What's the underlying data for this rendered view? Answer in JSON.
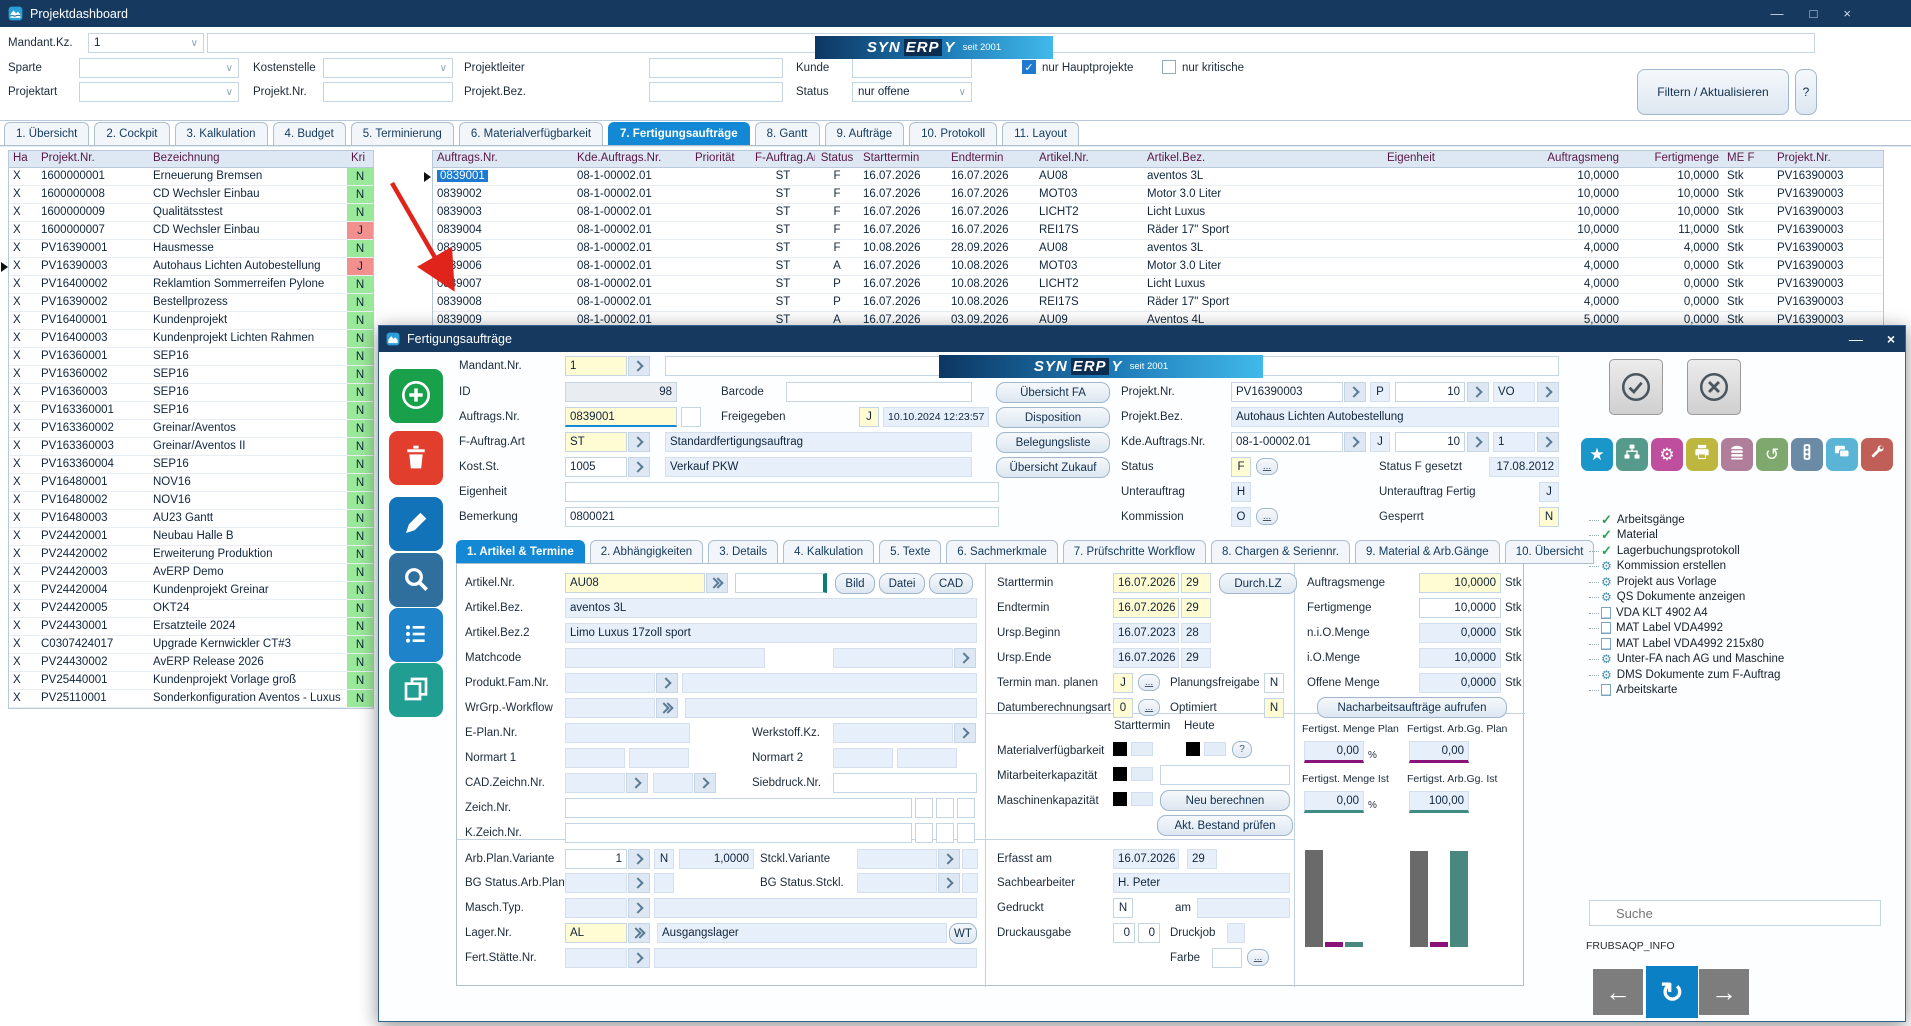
{
  "window": {
    "title": "Projektdashboard",
    "minimize": "—",
    "maximize": "□",
    "close": "×"
  },
  "brand": {
    "pre": "SYN",
    "mid": "ERP",
    "post": "Y",
    "tagline": "seit 2001"
  },
  "filters": {
    "mandant_label": "Mandant.Kz.",
    "mandant_value": "1",
    "sparte_label": "Sparte",
    "kostenstelle_label": "Kostenstelle",
    "projektleiter_label": "Projektleiter",
    "kunde_label": "Kunde",
    "projektart_label": "Projektart",
    "projektnr_label": "Projekt.Nr.",
    "projektbez_label": "Projekt.Bez.",
    "status_label": "Status",
    "status_value": "nur offene",
    "check_haupt_label": "nur Hauptprojekte",
    "check_kritisch_label": "nur kritische",
    "check_mark": "✓",
    "filter_button": "Filtern / Aktualisieren",
    "help_button": "?"
  },
  "main_tabs": [
    {
      "label": "1. Übersicht"
    },
    {
      "label": "2. Cockpit"
    },
    {
      "label": "3. Kalkulation"
    },
    {
      "label": "4. Budget"
    },
    {
      "label": "5. Terminierung"
    },
    {
      "label": "6. Materialverfügbarkeit"
    },
    {
      "label": "7. Fertigungsaufträge",
      "active": true
    },
    {
      "label": "8. Gantt"
    },
    {
      "label": "9. Aufträge"
    },
    {
      "label": "10. Protokoll"
    },
    {
      "label": "11. Layout"
    }
  ],
  "project_table": {
    "headers": [
      "Ha",
      "Projekt.Nr.",
      "Bezeichnung",
      "Kri"
    ],
    "marker_row": 5,
    "rows": [
      {
        "ha": "X",
        "nr": "1600000001",
        "bez": "Erneuerung Bremsen",
        "kr": "N",
        "red": false
      },
      {
        "ha": "X",
        "nr": "1600000008",
        "bez": "CD Wechsler Einbau",
        "kr": "N",
        "red": false
      },
      {
        "ha": "X",
        "nr": "1600000009",
        "bez": "Qualitätsstest",
        "kr": "N",
        "red": false
      },
      {
        "ha": "X",
        "nr": "1600000007",
        "bez": "CD Wechsler Einbau",
        "kr": "J",
        "red": true
      },
      {
        "ha": "X",
        "nr": "PV16390001",
        "bez": "Hausmesse",
        "kr": "N",
        "red": false
      },
      {
        "ha": "X",
        "nr": "PV16390003",
        "bez": "Autohaus Lichten Autobestellung",
        "kr": "J",
        "red": true
      },
      {
        "ha": "X",
        "nr": "PV16400002",
        "bez": "Reklamtion Sommerreifen Pylone",
        "kr": "N",
        "red": false
      },
      {
        "ha": "X",
        "nr": "PV16390002",
        "bez": "Bestellprozess",
        "kr": "N",
        "red": false
      },
      {
        "ha": "X",
        "nr": "PV16400001",
        "bez": "Kundenprojekt",
        "kr": "N",
        "red": false
      },
      {
        "ha": "X",
        "nr": "PV16400003",
        "bez": "Kundenprojekt Lichten Rahmen",
        "kr": "N",
        "red": false
      },
      {
        "ha": "X",
        "nr": "PV16360001",
        "bez": "SEP16",
        "kr": "N",
        "red": false
      },
      {
        "ha": "X",
        "nr": "PV16360002",
        "bez": "SEP16",
        "kr": "N",
        "red": false
      },
      {
        "ha": "X",
        "nr": "PV16360003",
        "bez": "SEP16",
        "kr": "N",
        "red": false
      },
      {
        "ha": "X",
        "nr": "PV163360001",
        "bez": "SEP16",
        "kr": "N",
        "red": false
      },
      {
        "ha": "X",
        "nr": "PV163360002",
        "bez": "Greinar/Aventos",
        "kr": "N",
        "red": false
      },
      {
        "ha": "X",
        "nr": "PV163360003",
        "bez": "Greinar/Aventos II",
        "kr": "N",
        "red": false
      },
      {
        "ha": "X",
        "nr": "PV163360004",
        "bez": "SEP16",
        "kr": "N",
        "red": false
      },
      {
        "ha": "X",
        "nr": "PV16480001",
        "bez": "NOV16",
        "kr": "N",
        "red": false
      },
      {
        "ha": "X",
        "nr": "PV16480002",
        "bez": "NOV16",
        "kr": "N",
        "red": false
      },
      {
        "ha": "X",
        "nr": "PV16480003",
        "bez": "AU23 Gantt",
        "kr": "N",
        "red": false
      },
      {
        "ha": "X",
        "nr": "PV24420001",
        "bez": "Neubau Halle B",
        "kr": "N",
        "red": false
      },
      {
        "ha": "X",
        "nr": "PV24420002",
        "bez": "Erweiterung Produktion",
        "kr": "N",
        "red": false
      },
      {
        "ha": "X",
        "nr": "PV24420003",
        "bez": "AvERP Demo",
        "kr": "N",
        "red": false
      },
      {
        "ha": "X",
        "nr": "PV24420004",
        "bez": "Kundenprojekt Greinar",
        "kr": "N",
        "red": false
      },
      {
        "ha": "X",
        "nr": "PV24420005",
        "bez": "OKT24",
        "kr": "N",
        "red": false
      },
      {
        "ha": "X",
        "nr": "PV24430001",
        "bez": "Ersatzteile 2024",
        "kr": "N",
        "red": false
      },
      {
        "ha": "X",
        "nr": "C0307424017",
        "bez": "Upgrade Kernwickler CT#3",
        "kr": "N",
        "red": false
      },
      {
        "ha": "X",
        "nr": "PV24430002",
        "bez": "AvERP Release 2026",
        "kr": "N",
        "red": false
      },
      {
        "ha": "X",
        "nr": "PV25440001",
        "bez": "Kundenprojekt Vorlage groß",
        "kr": "N",
        "red": false
      },
      {
        "ha": "X",
        "nr": "PV25110001",
        "bez": "Sonderkonfiguration Aventos - Luxus",
        "kr": "N",
        "red": false
      }
    ]
  },
  "orders_table": {
    "headers": [
      "Auftrags.Nr.",
      "Kde.Auftrags.Nr.",
      "Priorität",
      "F-Auftrag.Art",
      "Status",
      "Starttermin",
      "Endtermin",
      "Artikel.Nr.",
      "Artikel.Bez.",
      "Eigenheit",
      "Auftragsmeng",
      "Fertigmenge",
      "ME F",
      "Projekt.Nr."
    ],
    "selected_row": 0,
    "rows": [
      [
        "0839001",
        "08-1-00002.01",
        "",
        "ST",
        "F",
        "16.07.2026",
        "16.07.2026",
        "AU08",
        "aventos 3L",
        "",
        "10,0000",
        "10,0000",
        "Stk",
        "PV16390003"
      ],
      [
        "0839002",
        "08-1-00002.01",
        "",
        "ST",
        "F",
        "16.07.2026",
        "16.07.2026",
        "MOT03",
        "Motor 3.0 Liter",
        "",
        "10,0000",
        "10,0000",
        "Stk",
        "PV16390003"
      ],
      [
        "0839003",
        "08-1-00002.01",
        "",
        "ST",
        "F",
        "16.07.2026",
        "16.07.2026",
        "LICHT2",
        "Licht Luxus",
        "",
        "10,0000",
        "10,0000",
        "Stk",
        "PV16390003"
      ],
      [
        "0839004",
        "08-1-00002.01",
        "",
        "ST",
        "F",
        "16.07.2026",
        "16.07.2026",
        "REI17S",
        "Räder 17\" Sport",
        "",
        "10,0000",
        "11,0000",
        "Stk",
        "PV16390003"
      ],
      [
        "0839005",
        "08-1-00002.01",
        "",
        "ST",
        "F",
        "10.08.2026",
        "28.09.2026",
        "AU08",
        "aventos 3L",
        "",
        "4,0000",
        "4,0000",
        "Stk",
        "PV16390003"
      ],
      [
        "0839006",
        "08-1-00002.01",
        "",
        "ST",
        "A",
        "16.07.2026",
        "10.08.2026",
        "MOT03",
        "Motor 3.0 Liter",
        "",
        "4,0000",
        "0,0000",
        "Stk",
        "PV16390003"
      ],
      [
        "0839007",
        "08-1-00002.01",
        "",
        "ST",
        "P",
        "16.07.2026",
        "10.08.2026",
        "LICHT2",
        "Licht Luxus",
        "",
        "4,0000",
        "0,0000",
        "Stk",
        "PV16390003"
      ],
      [
        "0839008",
        "08-1-00002.01",
        "",
        "ST",
        "P",
        "16.07.2026",
        "10.08.2026",
        "REI17S",
        "Räder 17\" Sport",
        "",
        "4,0000",
        "0,0000",
        "Stk",
        "PV16390003"
      ],
      [
        "0839009",
        "08-1-00002.01",
        "",
        "ST",
        "A",
        "16.07.2026",
        "03.09.2026",
        "AU09",
        "Aventos 4L",
        "",
        "5,0000",
        "0,0000",
        "Stk",
        "PV16390003"
      ]
    ]
  },
  "dialog": {
    "title": "Fertigungsaufträge",
    "minimize": "—",
    "close": "×",
    "side_buttons": [
      {
        "name": "add-button",
        "icon": "plus-icon",
        "color": "#18a04b"
      },
      {
        "name": "delete-button",
        "icon": "trash-icon",
        "color": "#e23e2d"
      },
      {
        "name": "edit-button",
        "icon": "pencil-icon",
        "color": "#1273b9"
      },
      {
        "name": "search-button",
        "icon": "magnifier-icon",
        "color": "#2e6f9e"
      },
      {
        "name": "list-button",
        "icon": "list-icon",
        "color": "#1f83c9"
      },
      {
        "name": "copy-button",
        "icon": "copy-icon",
        "color": "#219e92"
      }
    ],
    "action_buttons": [
      "Übersicht FA",
      "Disposition",
      "Belegungsliste",
      "Übersicht Zukauf"
    ],
    "head": {
      "mandant_label": "Mandant.Nr.",
      "mandant_value": "1",
      "id_label": "ID",
      "id_value": "98",
      "barcode_label": "Barcode",
      "auftrag_label": "Auftrags.Nr.",
      "auftrag_value": "0839001",
      "frei_label": "Freigegeben",
      "frei_flag": "J",
      "frei_ts": "10.10.2024 12:23:57",
      "fart_label": "F-Auftrag.Art",
      "fart_code": "ST",
      "fart_text": "Standardfertigungsauftrag",
      "kost_label": "Kost.St.",
      "kost_code": "1005",
      "kost_text": "Verkauf PKW",
      "eigen_label": "Eigenheit",
      "bem_label": "Bemerkung",
      "bem_value": "0800021",
      "projekt_label": "Projekt.Nr.",
      "projekt_value": "PV16390003",
      "projekt_flag": "P",
      "projekt_num": "10",
      "projekt_code": "VO",
      "pbez_label": "Projekt.Bez.",
      "pbez_value": "Autohaus Lichten Autobestellung",
      "kde_label": "Kde.Auftrags.Nr.",
      "kde_value": "08-1-00002.01",
      "kde_flag": "J",
      "kde_num": "10",
      "kde_sub": "1",
      "status_label": "Status",
      "status_value": "F",
      "status_set_label": "Status F gesetzt",
      "status_set_value": "17.08.2012",
      "unter_label": "Unterauftrag",
      "unter_value": "H",
      "unterf_label": "Unterauftrag Fertig",
      "unterf_value": "J",
      "komm_label": "Kommission",
      "komm_value": "O",
      "gesperrt_label": "Gesperrt",
      "gesperrt_value": "N"
    },
    "tabs": [
      {
        "label": "1. Artikel & Termine",
        "active": true
      },
      {
        "label": "2. Abhängigkeiten"
      },
      {
        "label": "3. Details"
      },
      {
        "label": "4. Kalkulation"
      },
      {
        "label": "5. Texte"
      },
      {
        "label": "6. Sachmerkmale"
      },
      {
        "label": "7. Prüfschritte Workflow"
      },
      {
        "label": "8. Chargen & Seriennr."
      },
      {
        "label": "9. Material & Arb.Gänge"
      },
      {
        "label": "10. Übersicht"
      }
    ],
    "art": {
      "nr_label": "Artikel.Nr.",
      "nr_value": "AU08",
      "bild": "Bild",
      "datei": "Datei",
      "cad": "CAD",
      "bez_label": "Artikel.Bez.",
      "bez_value": "aventos 3L",
      "bez2_label": "Artikel.Bez.2",
      "bez2_value": "Limo Luxus 17zoll sport",
      "match_label": "Matchcode",
      "pfam_label": "Produkt.Fam.Nr.",
      "wrgrp_label": "WrGrp.-Workflow",
      "eplan_label": "E-Plan.Nr.",
      "werkstoff_label": "Werkstoff.Kz.",
      "norm1_label": "Normart 1",
      "norm2_label": "Normart 2",
      "cadz_label": "CAD.Zeichn.Nr.",
      "sieb_label": "Siebdruck.Nr.",
      "zeich_label": "Zeich.Nr.",
      "kzeich_label": "K.Zeich.Nr."
    },
    "low": {
      "arbplan_label": "Arb.Plan.Variante",
      "arbplan_value": "1",
      "arbplan_flag": "N",
      "arbplan_qty": "1,0000",
      "stckl_label": "Stckl.Variante",
      "bgarb_label": "BG Status.Arb.Plan.",
      "bgstckl_label": "BG Status.Stckl.",
      "masch_label": "Masch.Typ.",
      "lager_label": "Lager.Nr.",
      "lager_code": "AL",
      "lager_text": "Ausgangslager",
      "wt": "WT",
      "fert_label": "Fert.Stätte.Nr."
    },
    "term": {
      "start_label": "Starttermin",
      "start_date": "16.07.2026",
      "start_kw": "29",
      "durchlz": "Durch.LZ",
      "end_label": "Endtermin",
      "end_date": "16.07.2026",
      "end_kw": "29",
      "ub_label": "Ursp.Beginn",
      "ub_date": "16.07.2023",
      "ub_kw": "28",
      "ue_label": "Ursp.Ende",
      "ue_date": "16.07.2026",
      "ue_kw": "29",
      "man_label": "Termin man. planen",
      "man_value": "J",
      "plan_label": "Planungsfreigabe",
      "plan_value": "N",
      "datum_label": "Datumberechnungsart",
      "datum_value": "0",
      "opt_label": "Optimiert",
      "opt_value": "N"
    },
    "qty": {
      "auf_label": "Auftragsmenge",
      "auf_value": "10,0000",
      "fertig_label": "Fertigmenge",
      "fertig_value": "10,0000",
      "nio_label": "n.i.O.Menge",
      "nio_value": "0,0000",
      "io_label": "i.O.Menge",
      "io_value": "10,0000",
      "offen_label": "Offene Menge",
      "offen_value": "0,0000",
      "unit": "Stk",
      "nacharbeit": "Nacharbeitsaufträge aufrufen"
    },
    "cap": {
      "h_start": "Starttermin",
      "h_heute": "Heute",
      "mat_label": "Materialverfügbarkeit",
      "mit_label": "Mitarbeiterkapazität",
      "masch_label": "Maschinenkapazität",
      "q": "?",
      "neu": "Neu berechnen",
      "bestand": "Akt. Bestand prüfen"
    },
    "erf": {
      "erfasst_label": "Erfasst am",
      "erfasst_date": "16.07.2026",
      "erfasst_kw": "29",
      "sach_label": "Sachbearbeiter",
      "sach_value": "H. Peter",
      "gedruckt_label": "Gedruckt",
      "gedruckt_value": "N",
      "am_label": "am",
      "druck_label": "Druckausgabe",
      "druck1": "0",
      "druck2": "0",
      "druckjob_label": "Druckjob",
      "farbe_label": "Farbe"
    },
    "fert": {
      "mp_label": "Fertigst. Menge Plan",
      "mp_value": "0,00",
      "ap_label": "Fertigst. Arb.Gg. Plan",
      "ap_value": "0,00",
      "mi_label": "Fertigst. Menge Ist",
      "mi_value": "0,00",
      "ai_label": "Fertigst. Arb.Gg. Ist",
      "ai_value": "100,00",
      "pct": "%"
    },
    "bars": {
      "colors": [
        "#6a6a6a",
        "#8a1278",
        "#48887f"
      ],
      "groups": [
        [
          97,
          5,
          5
        ],
        [
          96,
          5,
          96
        ]
      ]
    },
    "mini_buttons": [
      {
        "name": "favorite-button",
        "icon": "star-icon",
        "color": "#1a96c8"
      },
      {
        "name": "hierarchy-button",
        "icon": "hierarchy-icon",
        "color": "#569a8b"
      },
      {
        "name": "gears-button",
        "icon": "gears-icon",
        "color": "#bf4f9e"
      },
      {
        "name": "print-button",
        "icon": "printer-icon",
        "color": "#bdb73f"
      },
      {
        "name": "layers-button",
        "icon": "layers-icon",
        "color": "#b07d9b"
      },
      {
        "name": "history-button",
        "icon": "history-icon",
        "color": "#7fa86e"
      },
      {
        "name": "traffic-light-button",
        "icon": "traffic-light-icon",
        "color": "#6a8aa5"
      },
      {
        "name": "comments-button",
        "icon": "comments-icon",
        "color": "#5ab4d6"
      },
      {
        "name": "wrench-button",
        "icon": "wrench-icon",
        "color": "#c05f58"
      }
    ],
    "tree": [
      {
        "icon": "check",
        "label": "Arbeitsgänge"
      },
      {
        "icon": "check",
        "label": "Material"
      },
      {
        "icon": "check",
        "label": "Lagerbuchungsprotokoll"
      },
      {
        "icon": "gear",
        "label": "Kommission erstellen"
      },
      {
        "icon": "gear",
        "label": "Projekt aus Vorlage"
      },
      {
        "icon": "gear",
        "label": "QS Dokumente anzeigen"
      },
      {
        "icon": "doc",
        "label": "VDA KLT 4902 A4"
      },
      {
        "icon": "doc",
        "label": "MAT Label VDA4992"
      },
      {
        "icon": "doc",
        "label": "MAT Label VDA4992 215x80"
      },
      {
        "icon": "gear",
        "label": "Unter-FA nach AG und Maschine"
      },
      {
        "icon": "gear",
        "label": "DMS Dokumente zum F-Auftrag"
      },
      {
        "icon": "doc",
        "label": "Arbeitskarte"
      }
    ],
    "search_placeholder": "Suche",
    "info": "FRUBSAQP_INFO"
  }
}
